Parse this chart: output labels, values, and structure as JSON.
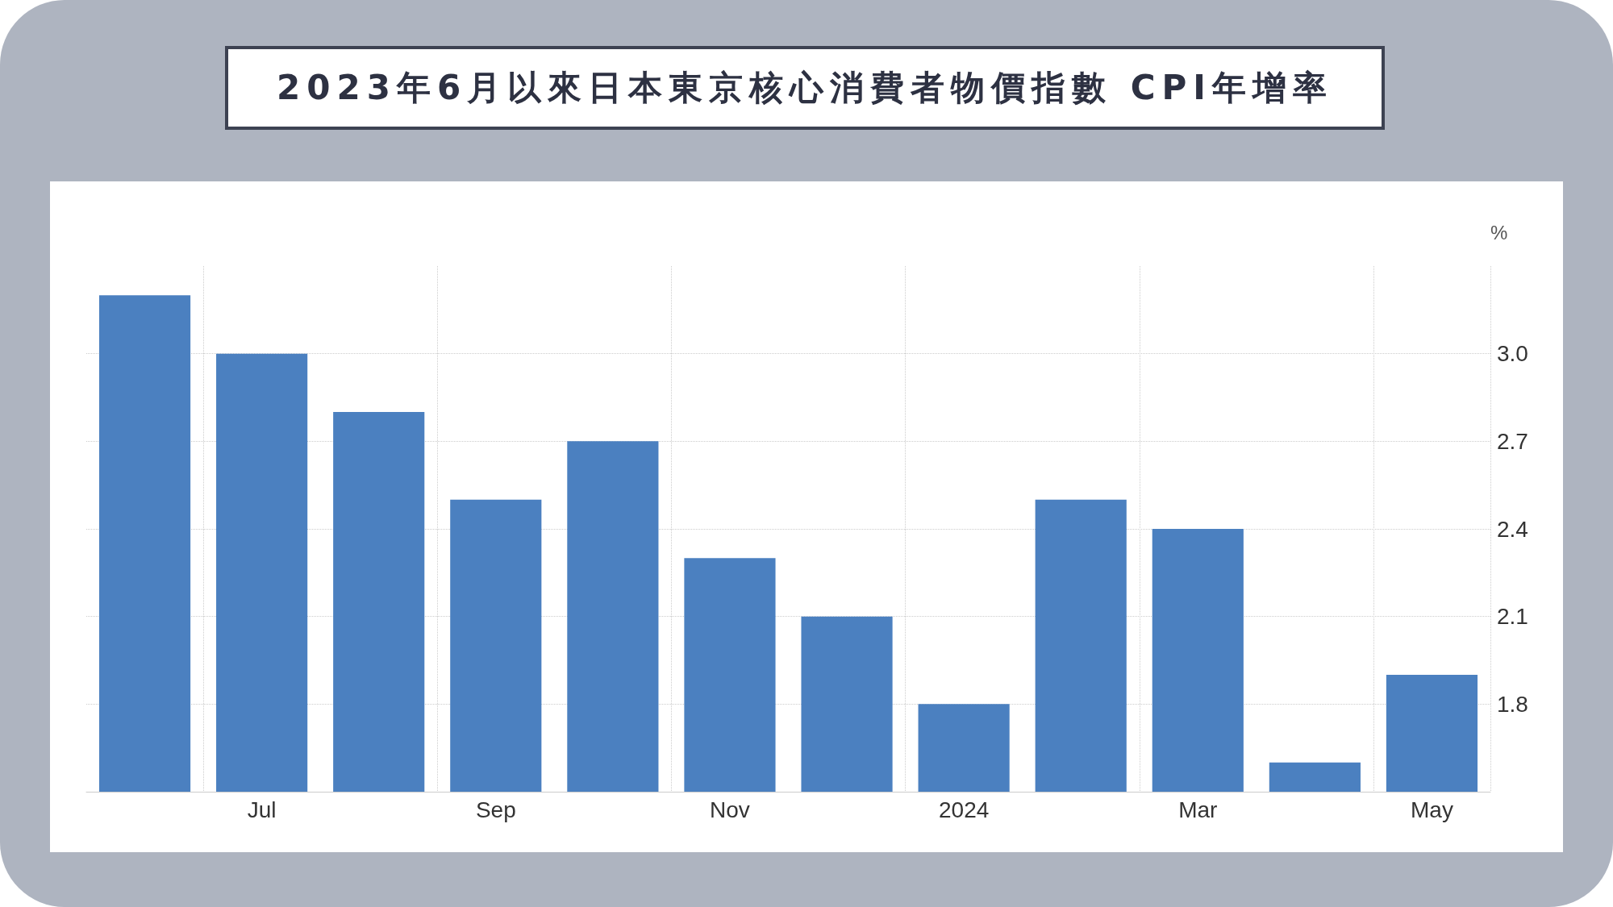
{
  "chart_data": {
    "type": "bar",
    "title": "2023年6月以來日本東京核心消費者物價指數 CPI年增率",
    "ylabel": "%",
    "categories": [
      null,
      "Jul",
      null,
      "Sep",
      null,
      "Nov",
      null,
      "2024",
      null,
      "Mar",
      null,
      "May"
    ],
    "values": [
      3.2,
      3.0,
      2.8,
      2.5,
      2.7,
      2.3,
      2.1,
      1.8,
      2.5,
      2.4,
      1.6,
      1.9
    ],
    "color": "#4b80c0",
    "ylim": [
      1.5,
      3.3
    ],
    "yticks": [
      {
        "value": 1.8,
        "label": "1.8"
      },
      {
        "value": 2.1,
        "label": "2.1"
      },
      {
        "value": 2.4,
        "label": "2.4"
      },
      {
        "value": 2.7,
        "label": "2.7"
      },
      {
        "value": 3.0,
        "label": "3.0"
      }
    ],
    "grid": true
  }
}
